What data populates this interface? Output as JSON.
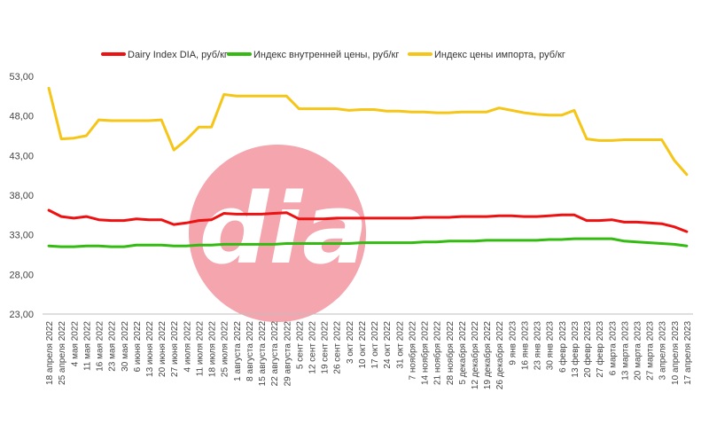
{
  "chart_data": {
    "type": "line",
    "title": "",
    "xlabel": "",
    "ylabel": "",
    "ylim": [
      23,
      53
    ],
    "y_ticks": [
      "23,00",
      "28,00",
      "33,00",
      "38,00",
      "43,00",
      "48,00",
      "53,00"
    ],
    "y_tick_values": [
      23,
      28,
      33,
      38,
      43,
      48,
      53
    ],
    "legend_position": "top",
    "grid": false,
    "x": [
      "18 апреля 2022",
      "25 апреля 2022",
      "4 мая 2022",
      "11 мая 2022",
      "16 мая 2022",
      "23 мая 2022",
      "30 мая 2022",
      "6 июня 2022",
      "13 июня 2022",
      "20 июня 2022",
      "27 июня 2022",
      "4 июля 2022",
      "11 июля 2022",
      "18 июля 2022",
      "25 июля 2022",
      "1 августа 2022",
      "8 августа 2022",
      "15 августа 2022",
      "22 августа 2022",
      "29 августа 2022",
      "5 сент 2022",
      "12 сент 2022",
      "19 сент 2022",
      "26 сент 2022",
      "3 окт 2022",
      "10 окт 2022",
      "17 окт 2022",
      "24 окт 2022",
      "31 окт 2022",
      "7 ноября 2022",
      "14 ноября 2022",
      "21 ноября 2022",
      "28 ноября 2022",
      "5 декабря 2022",
      "12 декабря 2022",
      "19 декабря 2022",
      "26 декабря 2022",
      "9 янв 2023",
      "16 янв 2023",
      "23 янв 2023",
      "30 янв 2023",
      "6 февр 2023",
      "13 февр 2023",
      "20 февр 2023",
      "27 февр 2023",
      "6 марта 2023",
      "13 марта 2023",
      "20 марта 2023",
      "27 марта 2023",
      "3 апреля 2023",
      "10 апреля 2023",
      "17 апреля 2023"
    ],
    "series": [
      {
        "name": "Dairy Index DIA,  руб/кг",
        "color": "#ee1111",
        "values": [
          36.1,
          35.3,
          35.1,
          35.3,
          34.9,
          34.8,
          34.8,
          35.0,
          34.9,
          34.9,
          34.3,
          34.5,
          34.8,
          34.9,
          35.7,
          35.6,
          35.6,
          35.6,
          35.7,
          35.8,
          35.0,
          35.0,
          35.0,
          35.1,
          35.1,
          35.1,
          35.1,
          35.1,
          35.1,
          35.1,
          35.2,
          35.2,
          35.2,
          35.3,
          35.3,
          35.3,
          35.4,
          35.4,
          35.3,
          35.3,
          35.4,
          35.5,
          35.5,
          34.8,
          34.8,
          34.9,
          34.6,
          34.6,
          34.5,
          34.4,
          34.0,
          33.4
        ]
      },
      {
        "name": "Индекс внутренней цены, руб/кг",
        "color": "#33bb11",
        "values": [
          31.6,
          31.5,
          31.5,
          31.6,
          31.6,
          31.5,
          31.5,
          31.7,
          31.7,
          31.7,
          31.6,
          31.6,
          31.7,
          31.7,
          31.8,
          31.8,
          31.8,
          31.8,
          31.8,
          31.9,
          31.9,
          31.9,
          31.9,
          31.9,
          31.9,
          32.0,
          32.0,
          32.0,
          32.0,
          32.0,
          32.1,
          32.1,
          32.2,
          32.2,
          32.2,
          32.3,
          32.3,
          32.3,
          32.3,
          32.3,
          32.4,
          32.4,
          32.5,
          32.5,
          32.5,
          32.5,
          32.2,
          32.1,
          32.0,
          31.9,
          31.8,
          31.6
        ]
      },
      {
        "name": "Индекс цены импорта, руб/кг",
        "color": "#f5c518",
        "values": [
          51.5,
          45.1,
          45.2,
          45.5,
          47.5,
          47.4,
          47.4,
          47.4,
          47.4,
          47.5,
          43.7,
          45.0,
          46.6,
          46.6,
          50.7,
          50.5,
          50.5,
          50.5,
          50.5,
          50.5,
          48.9,
          48.9,
          48.9,
          48.9,
          48.7,
          48.8,
          48.8,
          48.6,
          48.6,
          48.5,
          48.5,
          48.4,
          48.4,
          48.5,
          48.5,
          48.5,
          49.0,
          48.7,
          48.4,
          48.2,
          48.1,
          48.1,
          48.7,
          45.1,
          44.9,
          44.9,
          45.0,
          45.0,
          45.0,
          45.0,
          42.4,
          40.6
        ]
      }
    ],
    "watermark": {
      "text": "dia",
      "circle_color": "#f4a5ae",
      "text_color": "#ffffff"
    }
  }
}
